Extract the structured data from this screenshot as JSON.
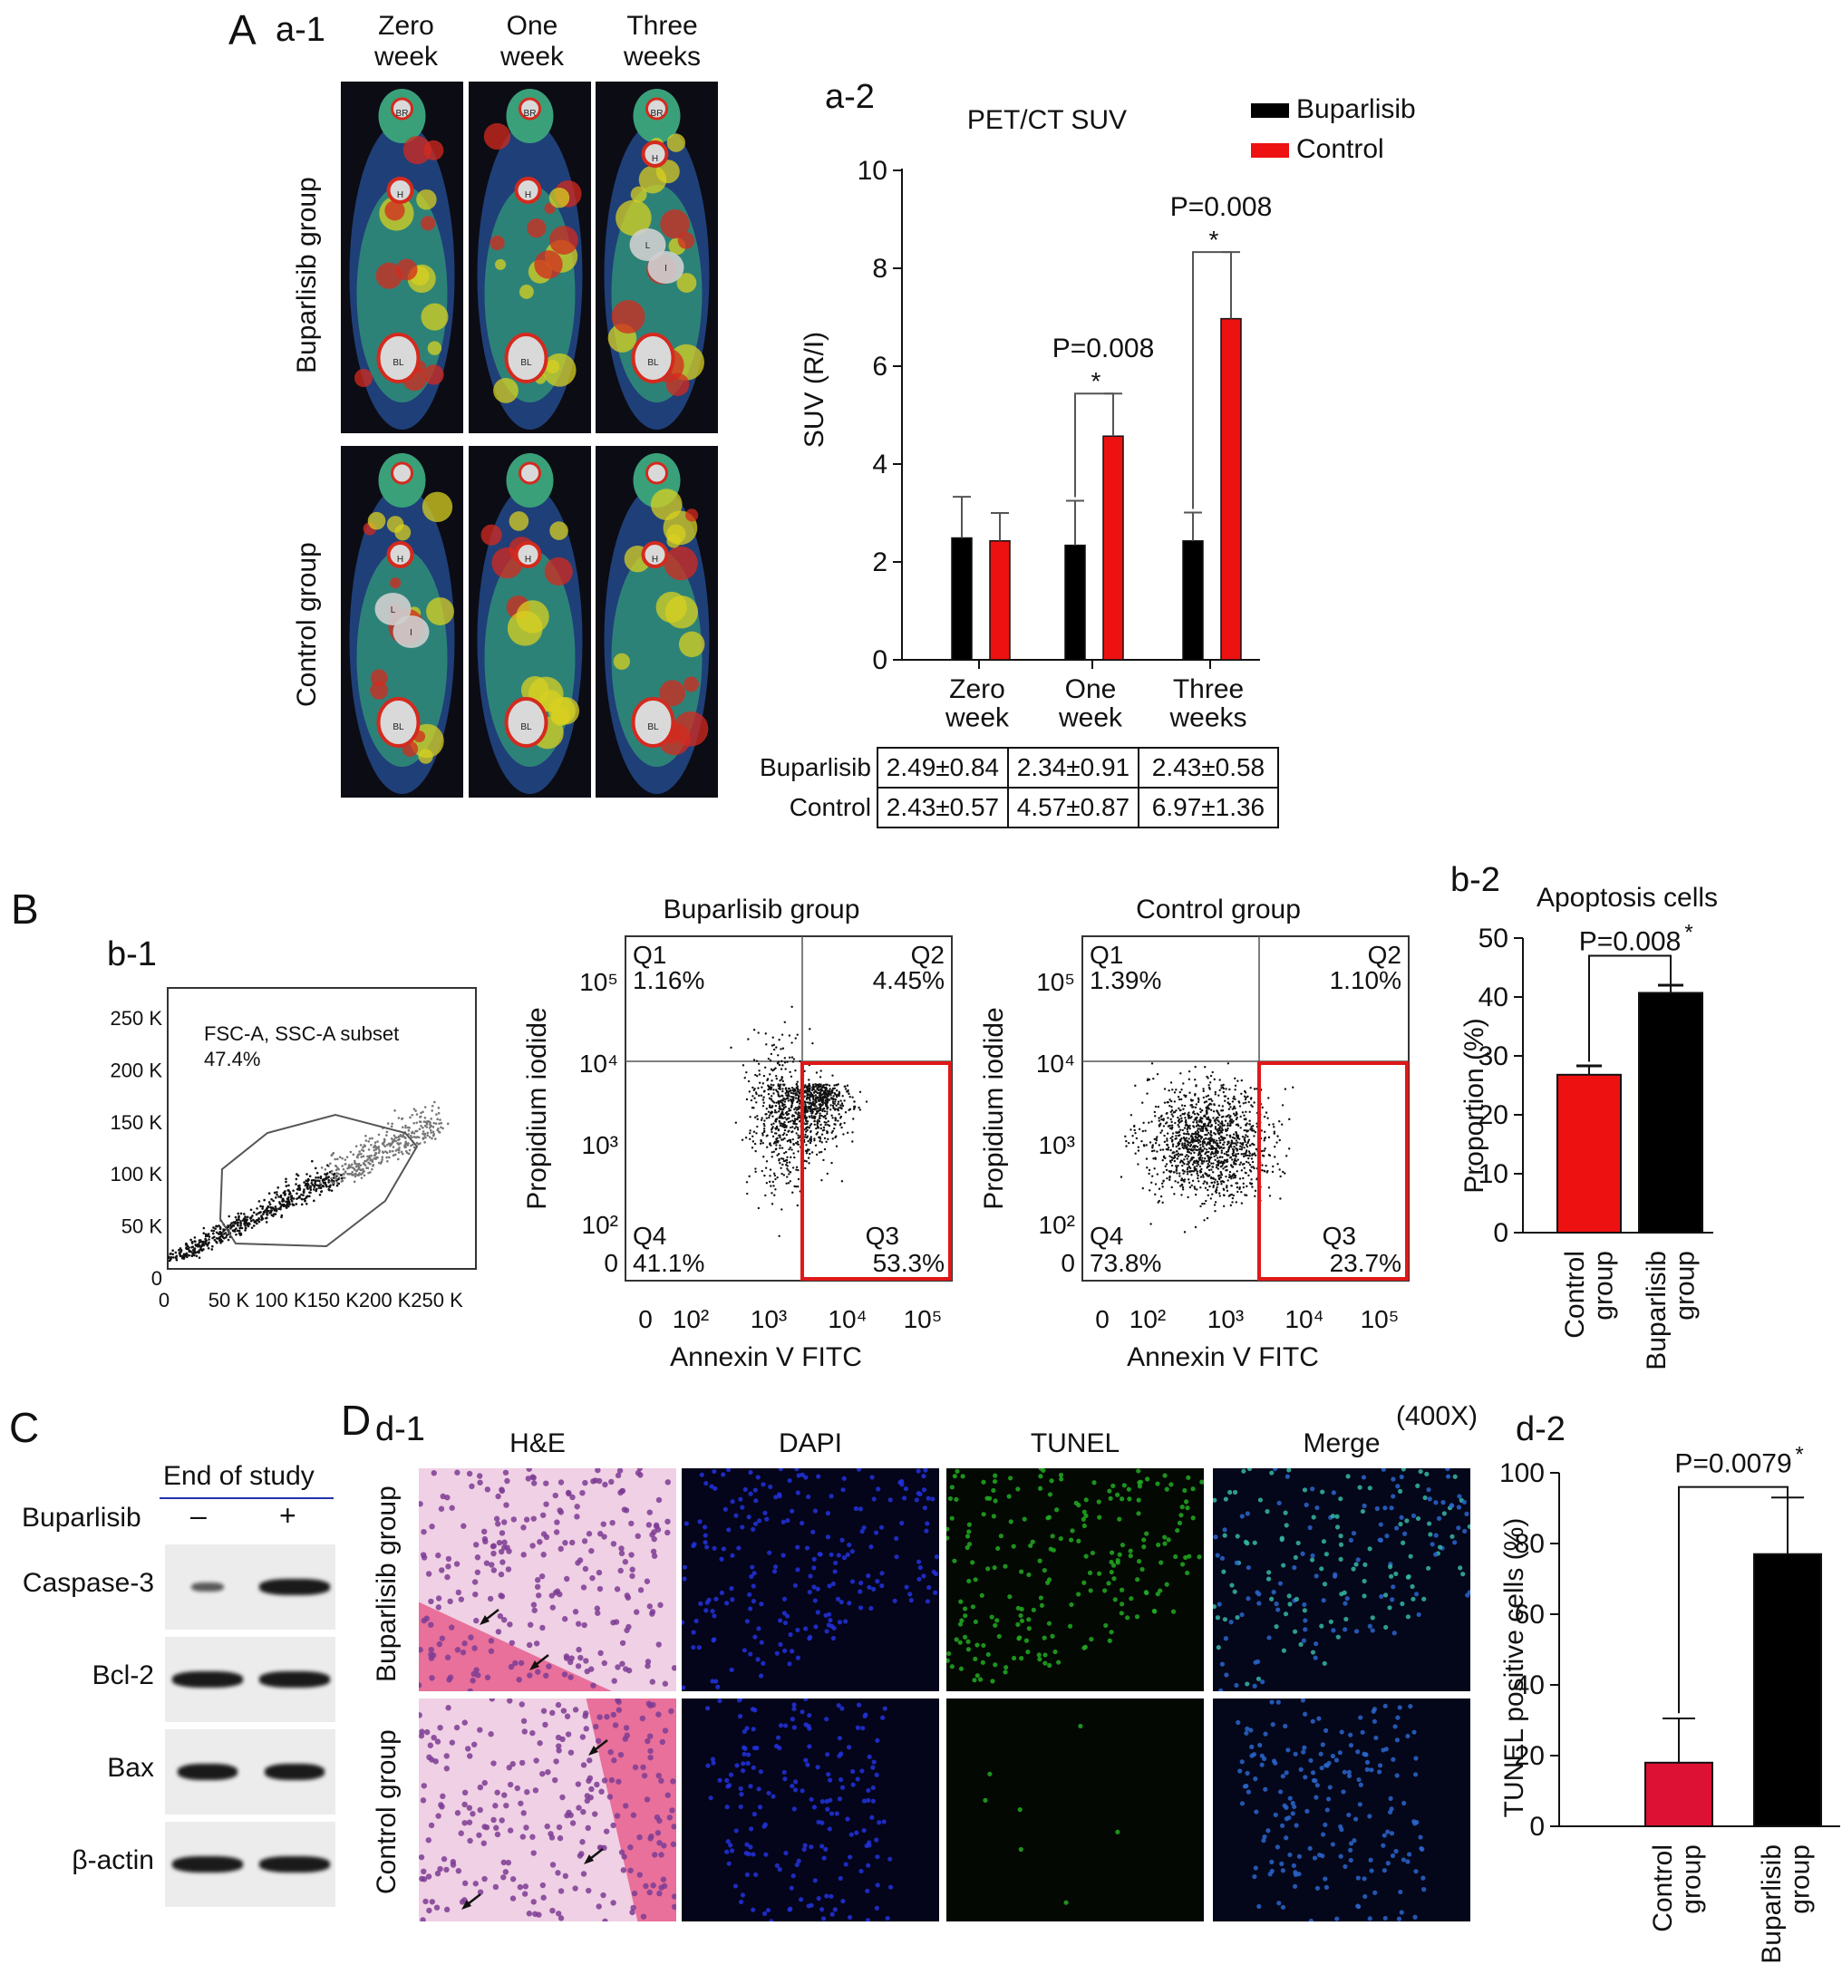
{
  "panel_A": {
    "letter": "A",
    "a1": {
      "label": "a-1",
      "columns": [
        "Zero\nweek",
        "One\nweek",
        "Three\nweeks"
      ],
      "rows": [
        "Buparlisib group",
        "Control group"
      ],
      "organ_marks": {
        "bup": [
          [
            "BR",
            "H",
            "BL"
          ],
          [
            "BR",
            "H",
            "BL"
          ],
          [
            "BR",
            "H",
            "L",
            "I",
            "BL"
          ]
        ],
        "ctl": [
          [
            "H",
            "L",
            "I",
            "BL"
          ],
          [
            "H",
            "BL"
          ],
          [
            "H",
            "BL"
          ]
        ]
      }
    },
    "a2": {
      "label": "a-2",
      "legend": [
        "Buparlisib",
        "Control"
      ],
      "colors": {
        "buparlisib": "#000000",
        "control": "#ee1111"
      },
      "pvalues": [
        "P=0.008",
        "P=0.008"
      ],
      "star": "*",
      "table": {
        "rows": [
          {
            "name": "Buparlisib",
            "cells": [
              "2.49±0.84",
              "2.34±0.91",
              "2.43±0.58"
            ]
          },
          {
            "name": "Control",
            "cells": [
              "2.43±0.57",
              "4.57±0.87",
              "6.97±1.36"
            ]
          }
        ]
      }
    }
  },
  "panel_B": {
    "letter": "B",
    "b1": {
      "label": "b-1",
      "gate_text": [
        "FSC-A, SSC-A subset",
        "47.4%"
      ],
      "y_ticks": [
        "250 K",
        "200 K",
        "150 K",
        "100 K",
        "50 K",
        "0"
      ],
      "x_ticks": [
        "0",
        "50 K",
        "100 K",
        "150 K",
        "200 K",
        "250 K"
      ]
    },
    "flow_plots": [
      {
        "title": "Buparlisib group",
        "q1": "Q1",
        "q1v": "1.16%",
        "q2": "Q2",
        "q2v": "4.45%",
        "q3": "Q3",
        "q3v": "53.3%",
        "q4": "Q4",
        "q4v": "41.1%"
      },
      {
        "title": "Control group",
        "q1": "Q1",
        "q1v": "1.39%",
        "q2": "Q2",
        "q2v": "1.10%",
        "q3": "Q3",
        "q3v": "23.7%",
        "q4": "Q4",
        "q4v": "73.8%"
      }
    ],
    "flow_axes": {
      "ylabel": "Propidium iodide",
      "xlabel": "Annexin V FITC",
      "y_ticks": [
        "10⁵",
        "10⁴",
        "10³",
        "10²",
        "0"
      ],
      "x_ticks": [
        "0",
        "10²",
        "10³",
        "10⁴",
        "10⁵"
      ]
    },
    "b2": {
      "label": "b-2",
      "pvalue": "P=0.008",
      "star": "*"
    }
  },
  "panel_C": {
    "letter": "C",
    "header": "End of study",
    "treatment": "Buparlisib",
    "signs": [
      "–",
      "+"
    ],
    "bands": [
      "Caspase-3",
      "Bcl-2",
      "Bax",
      "β-actin"
    ]
  },
  "panel_D": {
    "letter": "D",
    "d1": {
      "label": "d-1",
      "magnification": "(400X)",
      "columns": [
        "H&E",
        "DAPI",
        "TUNEL",
        "Merge"
      ],
      "rows": [
        "Buparlisib group",
        "Control group"
      ]
    },
    "d2": {
      "label": "d-2",
      "pvalue": "P=0.0079",
      "star": "*"
    }
  },
  "chart_data": [
    {
      "type": "bar",
      "title": "PET/CT SUV",
      "xlabel": "",
      "ylabel": "SUV (R/I)",
      "categories": [
        "Zero\nweek",
        "One\nweek",
        "Three\nweeks"
      ],
      "series": [
        {
          "name": "Buparlisib",
          "values": [
            2.49,
            2.34,
            2.43
          ],
          "errors": [
            0.84,
            0.91,
            0.58
          ]
        },
        {
          "name": "Control",
          "values": [
            2.43,
            4.57,
            6.97
          ],
          "errors": [
            0.57,
            0.87,
            1.36
          ]
        }
      ],
      "ylim": [
        0,
        10
      ],
      "y_ticks": [
        0,
        2,
        4,
        6,
        8,
        10
      ],
      "legend": "top-right"
    },
    {
      "type": "bar",
      "title": "Apoptosis cells",
      "xlabel": "",
      "ylabel": "Proportion (%)",
      "categories": [
        "Control\ngroup",
        "Buparlisib\ngroup"
      ],
      "values": [
        26.8,
        40.7
      ],
      "errors": [
        1.5,
        1.3
      ],
      "colors": [
        "#ee1111",
        "#000000"
      ],
      "ylim": [
        0,
        50
      ],
      "y_ticks": [
        0,
        10,
        20,
        30,
        40,
        50
      ]
    },
    {
      "type": "bar",
      "title": "",
      "xlabel": "",
      "ylabel": "TUNEL positive cells (%)",
      "categories": [
        "Control\ngroup",
        "Buparlisib\ngroup"
      ],
      "values": [
        18,
        77
      ],
      "errors": [
        12.5,
        16
      ],
      "colors": [
        "#dd1133",
        "#000000"
      ],
      "ylim": [
        0,
        100
      ],
      "y_ticks": [
        0,
        20,
        40,
        60,
        80,
        100
      ]
    }
  ]
}
